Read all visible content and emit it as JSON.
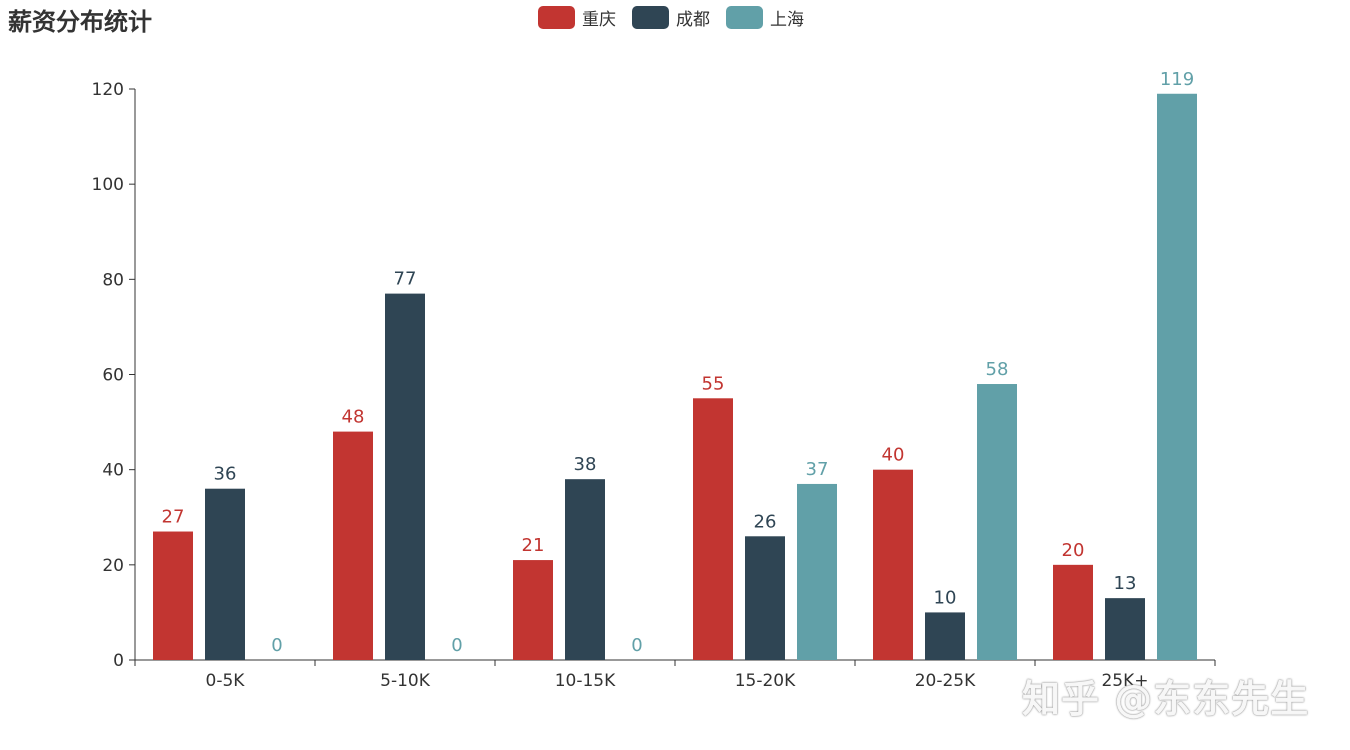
{
  "chart_data": {
    "type": "bar",
    "title": "薪资分布统计",
    "categories": [
      "0-5K",
      "5-10K",
      "10-15K",
      "15-20K",
      "20-25K",
      "25K+"
    ],
    "series": [
      {
        "name": "重庆",
        "color": "#c23531",
        "values": [
          27,
          48,
          21,
          55,
          40,
          20
        ]
      },
      {
        "name": "成都",
        "color": "#2f4554",
        "values": [
          36,
          77,
          38,
          26,
          10,
          13
        ]
      },
      {
        "name": "上海",
        "color": "#61a0a8",
        "values": [
          0,
          0,
          0,
          37,
          58,
          119
        ]
      }
    ],
    "ylim": [
      0,
      120
    ],
    "yticks": [
      0,
      20,
      40,
      60,
      80,
      100,
      120
    ],
    "xlabel": "",
    "ylabel": "",
    "grid": false,
    "legend_position": "top-center"
  },
  "watermark": "知乎 @东东先生"
}
